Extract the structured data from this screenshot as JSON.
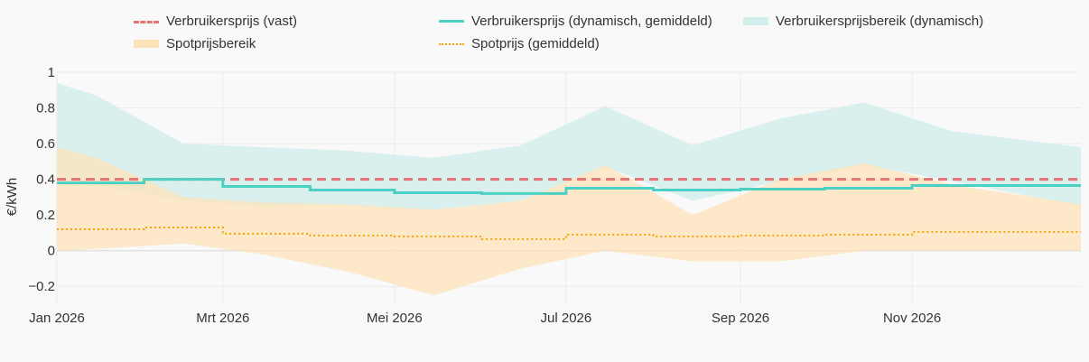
{
  "chart_data": {
    "type": "line",
    "ylabel": "€/kWh",
    "ylim": [
      -0.3,
      1.0
    ],
    "yticks": [
      {
        "value": -0.2,
        "label": "−0.2"
      },
      {
        "value": 0,
        "label": "0"
      },
      {
        "value": 0.2,
        "label": "0.2"
      },
      {
        "value": 0.4,
        "label": "0.4"
      },
      {
        "value": 0.6,
        "label": "0.6"
      },
      {
        "value": 0.8,
        "label": "0.8"
      },
      {
        "value": 1,
        "label": "1"
      }
    ],
    "x_range": [
      "2026-01-01",
      "2026-12-31"
    ],
    "xticks": [
      {
        "date": "2026-01-01",
        "label": "Jan 2026"
      },
      {
        "date": "2026-03-01",
        "label": "Mrt 2026"
      },
      {
        "date": "2026-05-01",
        "label": "Mei 2026"
      },
      {
        "date": "2026-07-01",
        "label": "Jul 2026"
      },
      {
        "date": "2026-09-01",
        "label": "Sep 2026"
      },
      {
        "date": "2026-11-01",
        "label": "Nov 2026"
      }
    ],
    "grid": true,
    "legend_position": "top",
    "series": [
      {
        "name": "Verbruikersprijs (vast)",
        "style": "dashed-line",
        "color": "#e57373",
        "x": [
          "2026-01-01",
          "2026-12-31"
        ],
        "y": [
          0.4,
          0.4
        ]
      },
      {
        "name": "Verbruikersprijs (dynamisch, gemiddeld)",
        "style": "step-line",
        "color": "#4dd0c4",
        "x": [
          "2026-01-01",
          "2026-02-01",
          "2026-03-01",
          "2026-04-01",
          "2026-05-01",
          "2026-06-01",
          "2026-07-01",
          "2026-08-01",
          "2026-09-01",
          "2026-10-01",
          "2026-11-01",
          "2026-12-01"
        ],
        "y": [
          0.38,
          0.4,
          0.36,
          0.34,
          0.325,
          0.32,
          0.35,
          0.34,
          0.345,
          0.35,
          0.365,
          0.365
        ]
      },
      {
        "name": "Verbruikersprijsbereik (dynamisch)",
        "style": "band",
        "color": "#d3efec",
        "x": [
          "2026-01-01",
          "2026-01-15",
          "2026-02-15",
          "2026-03-15",
          "2026-04-15",
          "2026-05-15",
          "2026-06-15",
          "2026-07-15",
          "2026-08-15",
          "2026-09-15",
          "2026-10-15",
          "2026-11-15",
          "2026-12-31"
        ],
        "upper": [
          0.94,
          0.87,
          0.6,
          0.58,
          0.56,
          0.52,
          0.59,
          0.81,
          0.59,
          0.74,
          0.83,
          0.67,
          0.58
        ],
        "lower": [
          0.4,
          0.37,
          0.28,
          0.25,
          0.25,
          0.23,
          0.28,
          0.47,
          0.28,
          0.39,
          0.48,
          0.39,
          0.25
        ]
      },
      {
        "name": "Spotprijsbereik",
        "style": "band",
        "color": "#fde3b8",
        "x": [
          "2026-01-01",
          "2026-01-15",
          "2026-02-15",
          "2026-03-15",
          "2026-04-15",
          "2026-05-15",
          "2026-06-15",
          "2026-07-15",
          "2026-08-15",
          "2026-09-15",
          "2026-10-15",
          "2026-11-15",
          "2026-12-31"
        ],
        "upper": [
          0.58,
          0.52,
          0.3,
          0.27,
          0.26,
          0.23,
          0.28,
          0.48,
          0.2,
          0.4,
          0.49,
          0.37,
          0.26
        ],
        "lower": [
          0.0,
          0.01,
          0.04,
          -0.02,
          -0.12,
          -0.25,
          -0.1,
          0.0,
          -0.06,
          -0.06,
          0.0,
          0.0,
          0.0
        ]
      },
      {
        "name": "Spotprijs (gemiddeld)",
        "style": "dotted-step-line",
        "color": "#f5a300",
        "x": [
          "2026-01-01",
          "2026-02-01",
          "2026-03-01",
          "2026-04-01",
          "2026-05-01",
          "2026-06-01",
          "2026-07-01",
          "2026-08-01",
          "2026-09-01",
          "2026-10-01",
          "2026-11-01",
          "2026-12-01"
        ],
        "y": [
          0.12,
          0.13,
          0.095,
          0.085,
          0.08,
          0.065,
          0.09,
          0.08,
          0.085,
          0.09,
          0.105,
          0.105
        ]
      }
    ]
  }
}
